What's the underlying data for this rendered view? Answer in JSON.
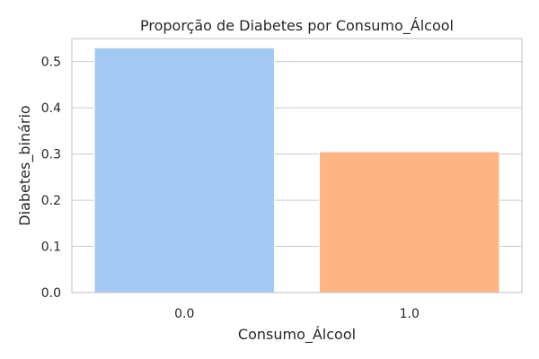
{
  "chart_data": {
    "type": "bar",
    "title": "Proporção de Diabetes por Consumo_Álcool",
    "xlabel": "Consumo_Álcool",
    "ylabel": "Diabetes_binário",
    "categories": [
      "0.0",
      "1.0"
    ],
    "values": [
      0.53,
      0.305
    ],
    "colors": [
      "#a1c9f4",
      "#ffb482"
    ],
    "ylim": [
      0,
      0.55
    ],
    "yticks": [
      0.0,
      0.1,
      0.2,
      0.3,
      0.4,
      0.5
    ],
    "ytick_labels": [
      "0.0",
      "0.1",
      "0.2",
      "0.3",
      "0.4",
      "0.5"
    ],
    "grid": true,
    "grid_axis": "y",
    "grid_color": "#cccccc",
    "axes_edge_color": "#cccccc"
  }
}
